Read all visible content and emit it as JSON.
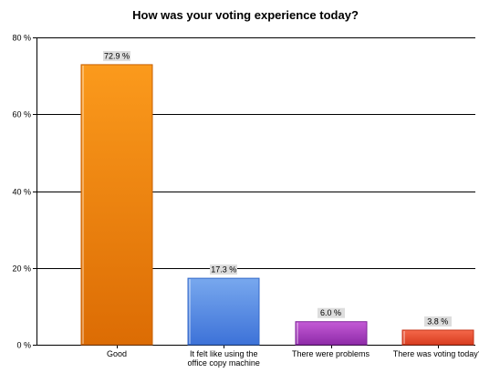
{
  "chart_data": {
    "type": "bar",
    "title": "How was your voting experience today?",
    "xlabel": "",
    "ylabel": "",
    "ylim": [
      0,
      80
    ],
    "y_ticks": [
      0,
      20,
      40,
      60,
      80
    ],
    "y_tick_labels": [
      "0 %",
      "20 %",
      "40 %",
      "60 %",
      "80 %"
    ],
    "grid": true,
    "legend": "none",
    "categories": [
      [
        "Good"
      ],
      [
        "It felt like using the",
        "office copy machine"
      ],
      [
        "There were problems"
      ],
      [
        "There was voting today?"
      ]
    ],
    "values": [
      72.9,
      17.3,
      6.0,
      3.8
    ],
    "data_labels": [
      "72.9 %",
      "17.3 %",
      "6.0 %",
      "3.8 %"
    ],
    "colors": [
      {
        "top": "#fb9a1c",
        "bottom": "#dc6c04",
        "edge": "#c75f02"
      },
      {
        "top": "#78a8ee",
        "bottom": "#3d72d8",
        "edge": "#3468c8"
      },
      {
        "top": "#c45ad6",
        "bottom": "#8e2ba8",
        "edge": "#7f249a"
      },
      {
        "top": "#f4684a",
        "bottom": "#d83c1f",
        "edge": "#c53419"
      }
    ],
    "label_box_color": "#dddddd"
  }
}
